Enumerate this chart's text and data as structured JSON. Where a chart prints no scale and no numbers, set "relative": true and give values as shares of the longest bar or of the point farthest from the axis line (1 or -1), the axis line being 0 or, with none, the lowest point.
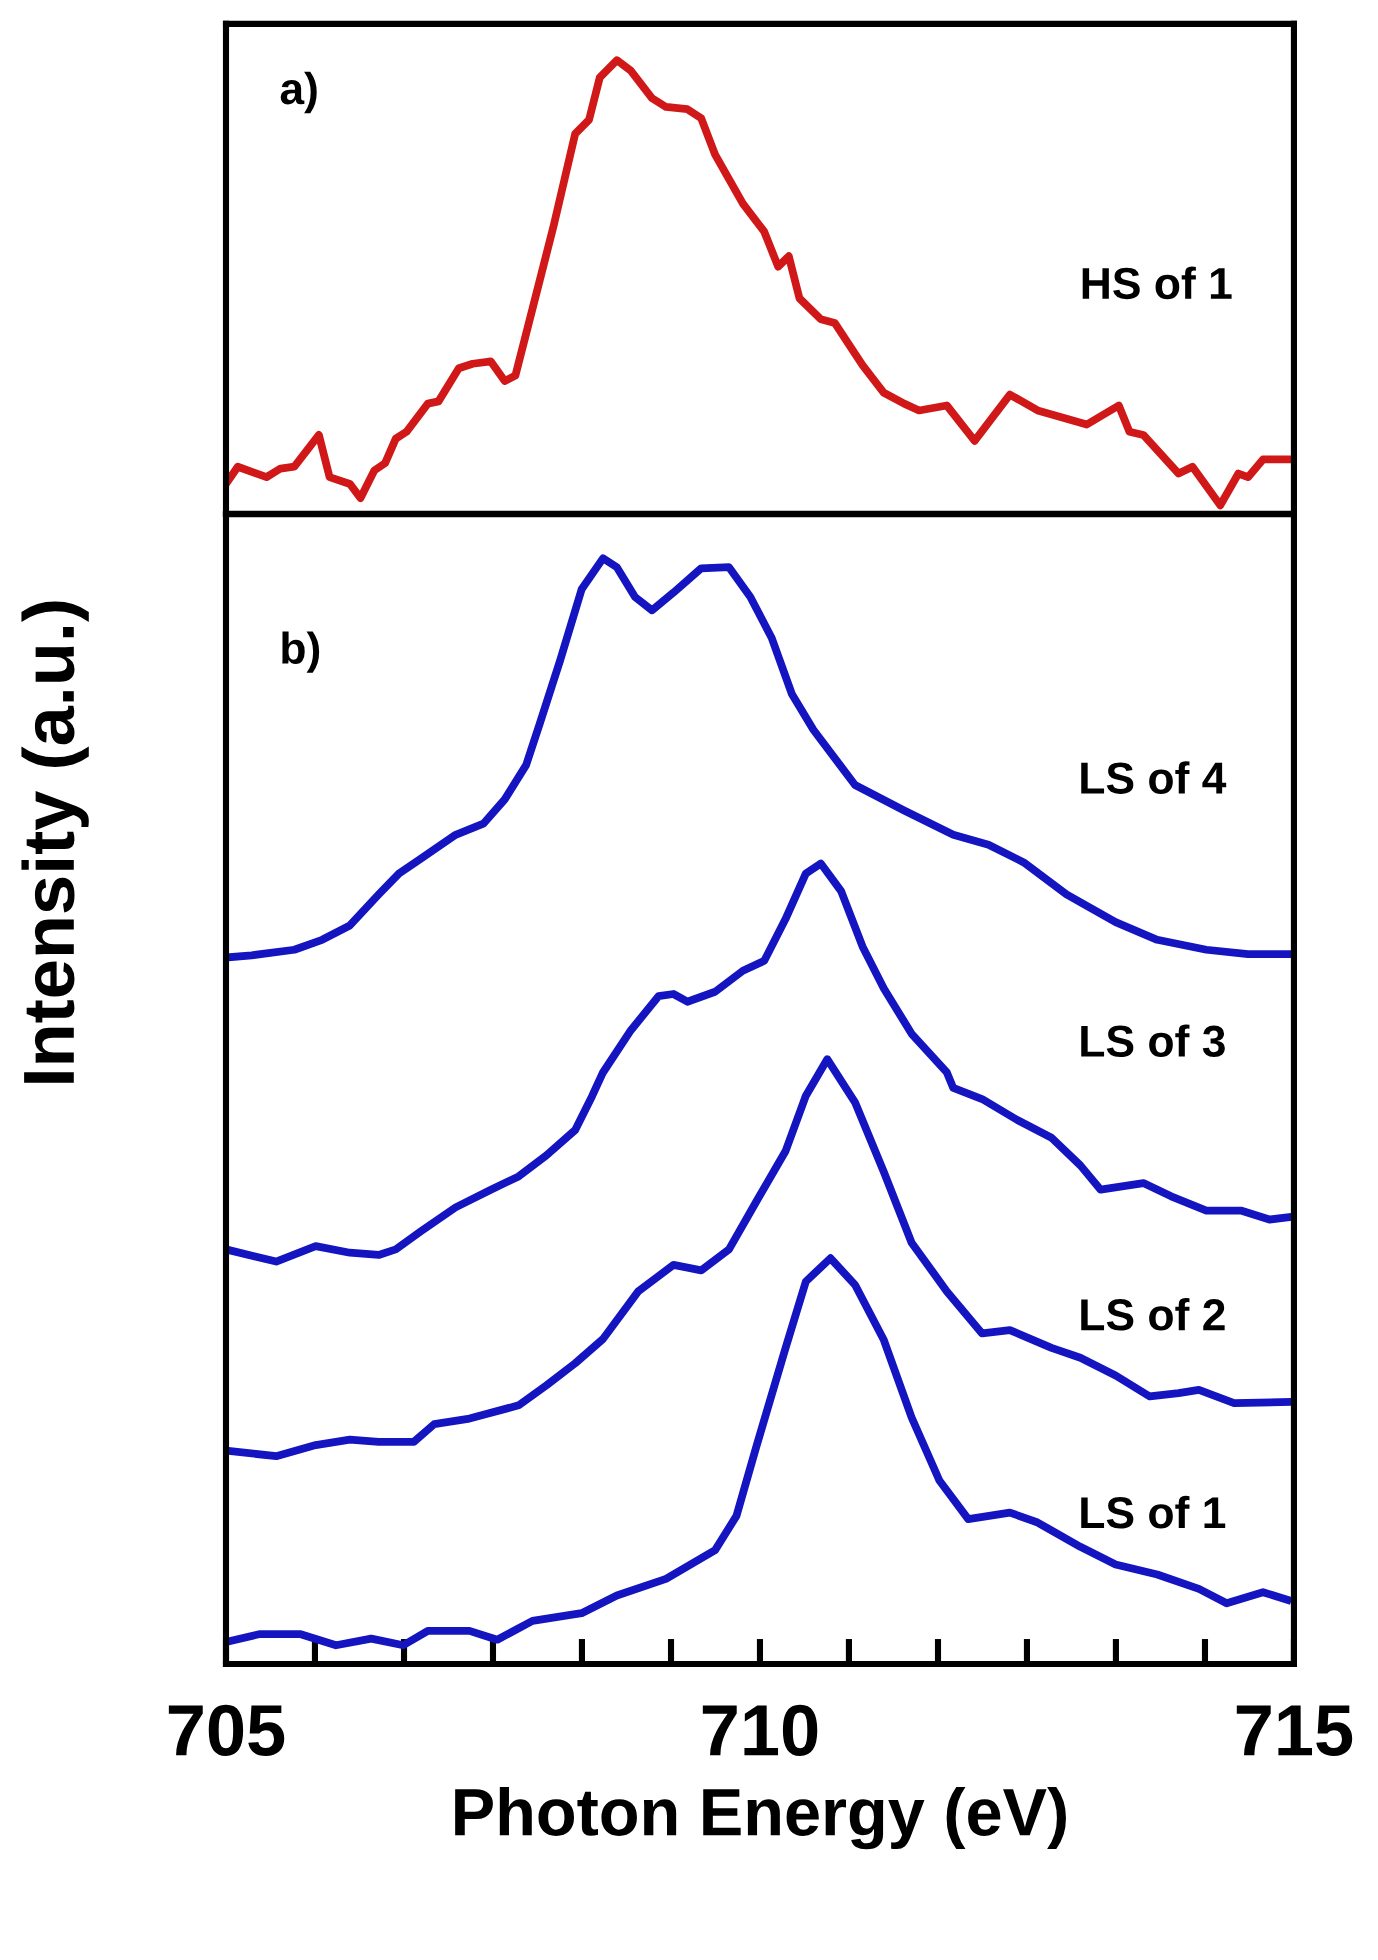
{
  "chart_data": [
    {
      "type": "line",
      "relative": true,
      "annotations": [
        "a)"
      ],
      "xlim": [
        705,
        715
      ],
      "tick_labels": false,
      "grid": false,
      "legend": false,
      "series": [
        {
          "name": "HS of 1",
          "color": "#d01818",
          "x": [
            705.0,
            705.11,
            705.38,
            705.51,
            705.64,
            705.87,
            705.97,
            706.16,
            706.26,
            706.39,
            706.49,
            706.59,
            706.69,
            706.89,
            706.99,
            707.18,
            707.31,
            707.48,
            707.61,
            707.71,
            707.87,
            708.07,
            708.27,
            708.4,
            708.5,
            708.66,
            708.79,
            708.99,
            709.12,
            709.32,
            709.45,
            709.58,
            709.84,
            710.04,
            710.17,
            710.27,
            710.37,
            710.57,
            710.7,
            710.96,
            711.16,
            711.35,
            711.49,
            711.75,
            712.01,
            712.34,
            712.6,
            713.06,
            713.36,
            713.46,
            713.59,
            713.92,
            714.05,
            714.31,
            714.48,
            714.57,
            714.71,
            714.84,
            715.0
          ],
          "values": [
            0.066,
            0.104,
            0.081,
            0.1,
            0.104,
            0.174,
            0.081,
            0.066,
            0.035,
            0.096,
            0.112,
            0.166,
            0.181,
            0.243,
            0.248,
            0.321,
            0.331,
            0.336,
            0.293,
            0.305,
            0.452,
            0.637,
            0.838,
            0.869,
            0.962,
            1.0,
            0.977,
            0.916,
            0.897,
            0.892,
            0.872,
            0.792,
            0.684,
            0.622,
            0.545,
            0.568,
            0.475,
            0.429,
            0.421,
            0.328,
            0.267,
            0.243,
            0.228,
            0.239,
            0.161,
            0.263,
            0.228,
            0.197,
            0.239,
            0.181,
            0.174,
            0.089,
            0.104,
            0.019,
            0.089,
            0.081,
            0.12,
            0.12,
            0.12
          ]
        }
      ]
    },
    {
      "type": "line",
      "relative": true,
      "annotations": [
        "b)"
      ],
      "xlabel": "Photon Energy (eV)",
      "ylabel": "Intensity (a.u.)",
      "xlim": [
        705,
        715
      ],
      "xticks": [
        705,
        {
          "value": 705.833,
          "label": null
        },
        {
          "value": 706.667,
          "label": null
        },
        {
          "value": 707.5,
          "label": null
        },
        {
          "value": 708.333,
          "label": null
        },
        {
          "value": 709.167,
          "label": null
        },
        710,
        {
          "value": 710.833,
          "label": null
        },
        {
          "value": 711.667,
          "label": null
        },
        {
          "value": 712.5,
          "label": null
        },
        {
          "value": 713.333,
          "label": null
        },
        {
          "value": 714.167,
          "label": null
        },
        715
      ],
      "tick_labels": "x",
      "grid": false,
      "legend": false,
      "series": [
        {
          "name": "LS of 4",
          "color": "#1414c0",
          "x": [
            705.0,
            705.24,
            705.64,
            705.9,
            706.16,
            706.43,
            706.62,
            706.82,
            707.15,
            707.41,
            707.61,
            707.81,
            707.94,
            708.13,
            708.33,
            708.53,
            708.66,
            708.83,
            708.99,
            709.19,
            709.45,
            709.71,
            709.91,
            710.11,
            710.3,
            710.5,
            710.89,
            711.35,
            711.81,
            712.14,
            712.47,
            712.87,
            713.33,
            713.72,
            714.18,
            714.57,
            714.94
          ],
          "values": [
            0.639,
            0.641,
            0.646,
            0.655,
            0.668,
            0.696,
            0.715,
            0.728,
            0.75,
            0.76,
            0.782,
            0.813,
            0.851,
            0.908,
            0.972,
            1.0,
            0.992,
            0.965,
            0.953,
            0.969,
            0.991,
            0.992,
            0.965,
            0.928,
            0.877,
            0.845,
            0.795,
            0.772,
            0.75,
            0.741,
            0.725,
            0.696,
            0.671,
            0.655,
            0.646,
            0.642,
            0.642
          ]
        },
        {
          "name": "LS of 3",
          "color": "#1414c0",
          "x": [
            705.0,
            705.47,
            705.84,
            706.16,
            706.43,
            706.59,
            706.82,
            707.15,
            707.48,
            707.74,
            708.0,
            708.27,
            708.43,
            708.53,
            708.79,
            709.05,
            709.19,
            709.32,
            709.58,
            709.84,
            710.04,
            710.24,
            710.43,
            710.57,
            710.76,
            710.96,
            711.16,
            711.42,
            711.75,
            711.81,
            712.08,
            712.41,
            712.73,
            713.0,
            713.19,
            713.59,
            713.85,
            714.18,
            714.51,
            714.77,
            714.94
          ],
          "values": [
            0.375,
            0.364,
            0.378,
            0.372,
            0.37,
            0.375,
            0.391,
            0.413,
            0.429,
            0.441,
            0.46,
            0.483,
            0.514,
            0.535,
            0.573,
            0.604,
            0.606,
            0.599,
            0.608,
            0.627,
            0.636,
            0.674,
            0.715,
            0.724,
            0.699,
            0.649,
            0.611,
            0.57,
            0.535,
            0.521,
            0.511,
            0.492,
            0.476,
            0.451,
            0.429,
            0.435,
            0.423,
            0.41,
            0.41,
            0.402,
            0.404
          ]
        },
        {
          "name": "LS of 2",
          "color": "#1414c0",
          "x": [
            705.0,
            705.47,
            705.84,
            706.16,
            706.43,
            706.76,
            706.95,
            707.28,
            707.74,
            708.0,
            708.27,
            708.53,
            708.86,
            709.19,
            709.45,
            709.71,
            709.97,
            710.24,
            710.43,
            710.63,
            710.89,
            711.16,
            711.42,
            711.75,
            712.08,
            712.34,
            712.73,
            713.0,
            713.33,
            713.65,
            713.92,
            714.11,
            714.44,
            714.94
          ],
          "values": [
            0.193,
            0.188,
            0.198,
            0.203,
            0.201,
            0.201,
            0.217,
            0.222,
            0.234,
            0.252,
            0.272,
            0.294,
            0.337,
            0.361,
            0.356,
            0.375,
            0.419,
            0.464,
            0.514,
            0.547,
            0.508,
            0.445,
            0.381,
            0.337,
            0.299,
            0.302,
            0.286,
            0.277,
            0.261,
            0.242,
            0.245,
            0.248,
            0.236,
            0.237
          ]
        },
        {
          "name": "LS of 1",
          "color": "#1414c0",
          "x": [
            705.0,
            705.31,
            705.7,
            706.03,
            706.36,
            706.66,
            706.89,
            707.28,
            707.54,
            707.87,
            708.33,
            708.66,
            709.12,
            709.58,
            709.78,
            709.97,
            710.24,
            710.43,
            710.66,
            710.89,
            711.16,
            711.42,
            711.68,
            711.95,
            712.34,
            712.6,
            713.0,
            713.33,
            713.72,
            714.11,
            714.37,
            714.71,
            714.94
          ],
          "values": [
            0.02,
            0.027,
            0.027,
            0.017,
            0.023,
            0.017,
            0.03,
            0.03,
            0.022,
            0.039,
            0.046,
            0.062,
            0.077,
            0.103,
            0.134,
            0.198,
            0.286,
            0.346,
            0.367,
            0.343,
            0.293,
            0.223,
            0.166,
            0.131,
            0.137,
            0.128,
            0.106,
            0.09,
            0.081,
            0.068,
            0.055,
            0.065,
            0.058
          ]
        }
      ]
    }
  ]
}
